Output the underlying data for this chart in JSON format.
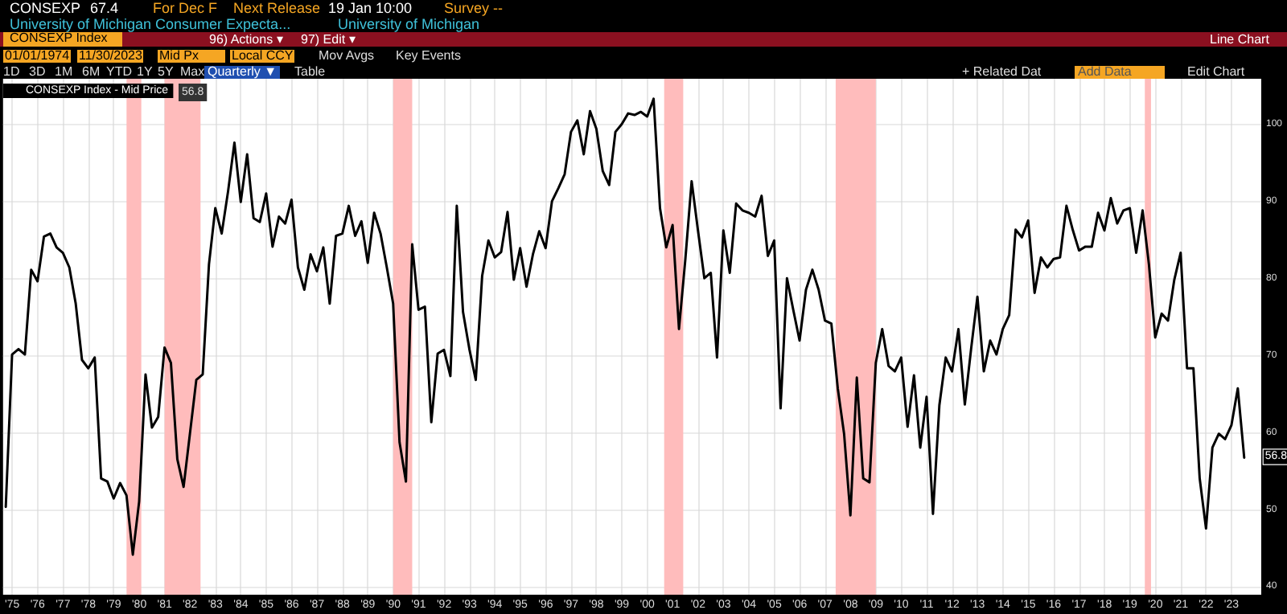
{
  "chart_data": {
    "type": "line",
    "title": "University of Michigan Consumer Expecta...",
    "subtitle": "University of Michigan",
    "annotations": [
      "CONSEXP",
      "67.4",
      "For Dec F",
      "Next Release",
      "19 Jan 10:00",
      "Survey --",
      "CONSEXP Index",
      "96) Actions ▾",
      "97) Edit ▾",
      "Line Chart",
      "01/01/1974",
      "11/30/2023",
      "Mid Px",
      "Local CCY",
      "Mov Avgs",
      "Key Events",
      "1D",
      "3D",
      "1M",
      "6M",
      "YTD",
      "1Y",
      "5Y",
      "Max",
      "Quarterly ▼",
      "Table",
      "+ Related Dat",
      "Add Data",
      "Edit Chart",
      "56.8",
      {
        "text": "56.8",
        "x": "2023-12-31",
        "y": 56.8
      }
    ],
    "x": [
      "1975-03-31",
      "1975-06-30",
      "1975-09-30",
      "1975-12-31",
      "1976-03-31",
      "1976-06-30",
      "1976-09-30",
      "1976-12-31",
      "1977-03-31",
      "1977-06-30",
      "1977-09-30",
      "1977-12-31",
      "1978-03-31",
      "1978-06-30",
      "1978-09-30",
      "1978-12-31",
      "1979-03-31",
      "1979-06-30",
      "1979-09-30",
      "1979-12-31",
      "1980-03-31",
      "1980-06-30",
      "1980-09-30",
      "1980-12-31",
      "1981-03-31",
      "1981-06-30",
      "1981-09-30",
      "1981-12-31",
      "1982-03-31",
      "1982-06-30",
      "1982-09-30",
      "1982-12-31",
      "1983-03-31",
      "1983-06-30",
      "1983-09-30",
      "1983-12-31",
      "1984-03-31",
      "1984-06-30",
      "1984-09-30",
      "1984-12-31",
      "1985-03-31",
      "1985-06-30",
      "1985-09-30",
      "1985-12-31",
      "1986-03-31",
      "1986-06-30",
      "1986-09-30",
      "1986-12-31",
      "1987-03-31",
      "1987-06-30",
      "1987-09-30",
      "1987-12-31",
      "1988-03-31",
      "1988-06-30",
      "1988-09-30",
      "1988-12-31",
      "1989-03-31",
      "1989-06-30",
      "1989-09-30",
      "1989-12-31",
      "1990-03-31",
      "1990-06-30",
      "1990-09-30",
      "1990-12-31",
      "1991-03-31",
      "1991-06-30",
      "1991-09-30",
      "1991-12-31",
      "1992-03-31",
      "1992-06-30",
      "1992-09-30",
      "1992-12-31",
      "1993-03-31",
      "1993-06-30",
      "1993-09-30",
      "1993-12-31",
      "1994-03-31",
      "1994-06-30",
      "1994-09-30",
      "1994-12-31",
      "1995-03-31",
      "1995-06-30",
      "1995-09-30",
      "1995-12-31",
      "1996-03-31",
      "1996-06-30",
      "1996-09-30",
      "1996-12-31",
      "1997-03-31",
      "1997-06-30",
      "1997-09-30",
      "1997-12-31",
      "1998-03-31",
      "1998-06-30",
      "1998-09-30",
      "1998-12-31",
      "1999-03-31",
      "1999-06-30",
      "1999-09-30",
      "1999-12-31",
      "2000-03-31",
      "2000-06-30",
      "2000-09-30",
      "2000-12-31",
      "2001-03-31",
      "2001-06-30",
      "2001-09-30",
      "2001-12-31",
      "2002-03-31",
      "2002-06-30",
      "2002-09-30",
      "2002-12-31",
      "2003-03-31",
      "2003-06-30",
      "2003-09-30",
      "2003-12-31",
      "2004-03-31",
      "2004-06-30",
      "2004-09-30",
      "2004-12-31",
      "2005-03-31",
      "2005-06-30",
      "2005-09-30",
      "2005-12-31",
      "2006-03-31",
      "2006-06-30",
      "2006-09-30",
      "2006-12-31",
      "2007-03-31",
      "2007-06-30",
      "2007-09-30",
      "2007-12-31",
      "2008-03-31",
      "2008-06-30",
      "2008-09-30",
      "2008-12-31",
      "2009-03-31",
      "2009-06-30",
      "2009-09-30",
      "2009-12-31",
      "2010-03-31",
      "2010-06-30",
      "2010-09-30",
      "2010-12-31",
      "2011-03-31",
      "2011-06-30",
      "2011-09-30",
      "2011-12-31",
      "2012-03-31",
      "2012-06-30",
      "2012-09-30",
      "2012-12-31",
      "2013-03-31",
      "2013-06-30",
      "2013-09-30",
      "2013-12-31",
      "2014-03-31",
      "2014-06-30",
      "2014-09-30",
      "2014-12-31",
      "2015-03-31",
      "2015-06-30",
      "2015-09-30",
      "2015-12-31",
      "2016-03-31",
      "2016-06-30",
      "2016-09-30",
      "2016-12-31",
      "2017-03-31",
      "2017-06-30",
      "2017-09-30",
      "2017-12-31",
      "2018-03-31",
      "2018-06-30",
      "2018-09-30",
      "2018-12-31",
      "2019-03-31",
      "2019-06-30",
      "2019-09-30",
      "2019-12-31",
      "2020-03-31",
      "2020-06-30",
      "2020-09-30",
      "2020-12-31",
      "2021-03-31",
      "2021-06-30",
      "2021-09-30",
      "2021-12-31",
      "2022-03-31",
      "2022-06-30",
      "2022-09-30",
      "2022-12-31",
      "2023-03-31",
      "2023-06-30",
      "2023-09-30",
      "2023-12-31"
    ],
    "series": [
      {
        "name": "CONSEXP Index - Mid Price",
        "color": "#000000",
        "values": [
          50.4,
          70.2,
          70.9,
          70.2,
          81.2,
          79.7,
          85.5,
          85.9,
          84.1,
          83.4,
          81.5,
          76.8,
          69.5,
          68.4,
          69.8,
          54.1,
          53.7,
          51.5,
          53.5,
          51.9,
          44.2,
          51.1,
          67.6,
          60.7,
          62.1,
          71.1,
          69.1,
          56.6,
          53.0,
          59.9,
          66.9,
          67.6,
          81.9,
          89.2,
          85.9,
          91.4,
          97.7,
          90.0,
          96.2,
          87.9,
          87.4,
          91.1,
          84.2,
          88.1,
          87.2,
          90.3,
          81.5,
          78.6,
          83.2,
          81.0,
          84.1,
          76.8,
          85.6,
          85.9,
          89.5,
          85.6,
          87.5,
          82.1,
          88.6,
          85.9,
          81.5,
          76.8,
          58.8,
          53.7,
          84.5,
          76.0,
          76.4,
          61.4,
          70.3,
          70.8,
          67.4,
          89.5,
          75.7,
          70.9,
          66.9,
          80.4,
          85.0,
          82.8,
          83.5,
          88.7,
          79.9,
          84.0,
          79.0,
          83.2,
          86.2,
          84.0,
          90.1,
          91.8,
          93.6,
          99.1,
          100.6,
          96.2,
          101.8,
          99.5,
          94.0,
          92.2,
          99.1,
          100.1,
          101.5,
          101.3,
          101.7,
          101.1,
          103.4,
          89.2,
          84.1,
          87.0,
          73.5,
          82.6,
          92.7,
          86.3,
          80.1,
          80.8,
          69.8,
          86.3,
          80.8,
          89.8,
          88.9,
          88.6,
          88.1,
          90.8,
          83.0,
          85.0,
          63.2,
          80.1,
          76.0,
          72.0,
          78.6,
          81.2,
          78.6,
          74.6,
          74.2,
          65.8,
          59.9,
          49.3,
          67.2,
          54.1,
          53.6,
          69.1,
          73.5,
          68.7,
          68.0,
          69.8,
          60.8,
          67.5,
          58.1,
          64.7,
          49.5,
          63.6,
          69.8,
          68.0,
          73.5,
          63.7,
          70.9,
          77.7,
          68.0,
          72.0,
          70.2,
          73.5,
          75.3,
          86.4,
          85.4,
          87.6,
          78.2,
          82.8,
          81.5,
          82.6,
          82.8,
          89.5,
          86.4,
          83.7,
          84.2,
          84.2,
          88.6,
          86.3,
          90.5,
          87.2,
          88.9,
          89.2,
          83.4,
          88.9,
          81.9,
          72.4,
          75.5,
          74.6,
          79.9,
          83.4,
          68.4,
          68.4,
          54.1,
          47.6,
          58.1,
          59.9,
          59.2,
          61.0,
          65.8,
          56.8
        ]
      }
    ],
    "xlim": [
      "1975-02-20",
      "2024-09-01"
    ],
    "xticks": [
      {
        "value": "1975-07-01",
        "label": "'75"
      },
      {
        "value": "1976-07-01",
        "label": "'76"
      },
      {
        "value": "1977-07-01",
        "label": "'77"
      },
      {
        "value": "1978-07-01",
        "label": "'78"
      },
      {
        "value": "1979-07-01",
        "label": "'79"
      },
      {
        "value": "1980-07-01",
        "label": "'80"
      },
      {
        "value": "1981-07-01",
        "label": "'81"
      },
      {
        "value": "1982-07-01",
        "label": "'82"
      },
      {
        "value": "1983-07-01",
        "label": "'83"
      },
      {
        "value": "1984-07-01",
        "label": "'84"
      },
      {
        "value": "1985-07-01",
        "label": "'85"
      },
      {
        "value": "1986-07-01",
        "label": "'86"
      },
      {
        "value": "1987-07-01",
        "label": "'87"
      },
      {
        "value": "1988-07-01",
        "label": "'88"
      },
      {
        "value": "1989-07-01",
        "label": "'89"
      },
      {
        "value": "1990-07-01",
        "label": "'90"
      },
      {
        "value": "1991-07-01",
        "label": "'91"
      },
      {
        "value": "1992-07-01",
        "label": "'92"
      },
      {
        "value": "1993-07-01",
        "label": "'93"
      },
      {
        "value": "1994-07-01",
        "label": "'94"
      },
      {
        "value": "1995-07-01",
        "label": "'95"
      },
      {
        "value": "1996-07-01",
        "label": "'96"
      },
      {
        "value": "1997-07-01",
        "label": "'97"
      },
      {
        "value": "1998-07-01",
        "label": "'98"
      },
      {
        "value": "1999-07-01",
        "label": "'99"
      },
      {
        "value": "2000-07-01",
        "label": "'00"
      },
      {
        "value": "2001-07-01",
        "label": "'01"
      },
      {
        "value": "2002-07-01",
        "label": "'02"
      },
      {
        "value": "2003-07-01",
        "label": "'03"
      },
      {
        "value": "2004-07-01",
        "label": "'04"
      },
      {
        "value": "2005-07-01",
        "label": "'05"
      },
      {
        "value": "2006-07-01",
        "label": "'06"
      },
      {
        "value": "2007-07-01",
        "label": "'07"
      },
      {
        "value": "2008-07-01",
        "label": "'08"
      },
      {
        "value": "2009-07-01",
        "label": "'09"
      },
      {
        "value": "2010-07-01",
        "label": "'10"
      },
      {
        "value": "2011-07-01",
        "label": "'11"
      },
      {
        "value": "2012-07-01",
        "label": "'12"
      },
      {
        "value": "2013-07-01",
        "label": "'13"
      },
      {
        "value": "2014-07-01",
        "label": "'14"
      },
      {
        "value": "2015-07-01",
        "label": "'15"
      },
      {
        "value": "2016-07-01",
        "label": "'16"
      },
      {
        "value": "2017-07-01",
        "label": "'17"
      },
      {
        "value": "2018-07-01",
        "label": "'18"
      },
      {
        "value": "2019-07-01",
        "label": "'19"
      },
      {
        "value": "2020-07-01",
        "label": "'20"
      },
      {
        "value": "2021-07-01",
        "label": "'21"
      },
      {
        "value": "2022-07-01",
        "label": "'22"
      },
      {
        "value": "2023-07-01",
        "label": "'23"
      }
    ],
    "ylim": [
      39,
      106
    ],
    "yticks": [
      40,
      50,
      60,
      70,
      80,
      90,
      100
    ],
    "bands": [
      {
        "axis": "x",
        "from": "1980-01-01",
        "to": "1980-07-31",
        "color": "#ffbcbc"
      },
      {
        "axis": "x",
        "from": "1981-07-01",
        "to": "1982-11-30",
        "color": "#ffbcbc"
      },
      {
        "axis": "x",
        "from": "1990-07-01",
        "to": "1991-03-31",
        "color": "#ffbcbc"
      },
      {
        "axis": "x",
        "from": "2001-03-01",
        "to": "2001-11-30",
        "color": "#ffbcbc"
      },
      {
        "axis": "x",
        "from": "2007-12-01",
        "to": "2009-06-30",
        "color": "#ffbcbc"
      },
      {
        "axis": "x",
        "from": "2020-02-01",
        "to": "2020-04-30",
        "color": "#ffbcbc"
      }
    ],
    "grid": true,
    "legend": "top left",
    "marker": "none",
    "line_style": "solid"
  }
}
